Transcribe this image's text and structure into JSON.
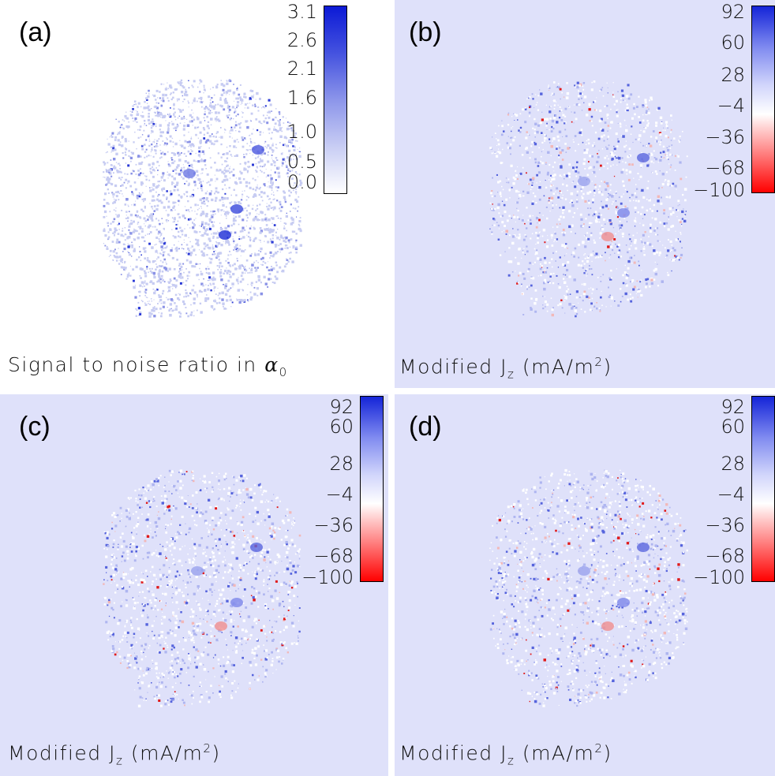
{
  "panels": {
    "a": {
      "label": "(a)",
      "caption_pre": "Signal to noise ratio in ",
      "caption_sym": "α",
      "caption_sub": "0",
      "ticks": [
        "3.1",
        "2.6",
        "2.1",
        "1.6",
        "1.0",
        "0.5",
        "0.0"
      ]
    },
    "b": {
      "label": "(b)",
      "caption_pre": "Modified J",
      "caption_sub": "z",
      "caption_post": " (mA/m",
      "caption_sup": "2",
      "caption_end": ")",
      "ticks": [
        "92",
        "60",
        "28",
        "−4",
        "−36",
        "−68",
        "−100"
      ]
    },
    "c": {
      "label": "(c)",
      "caption_pre": "Modified J",
      "caption_sub": "z",
      "caption_post": " (mA/m",
      "caption_sup": "2",
      "caption_end": ")",
      "ticks": [
        "92",
        "60",
        "28",
        "−4",
        "−36",
        "−68",
        "−100"
      ]
    },
    "d": {
      "label": "(d)",
      "caption_pre": "Modified J",
      "caption_sub": "z",
      "caption_post": " (mA/m",
      "caption_sup": "2",
      "caption_end": ")",
      "ticks": [
        "92",
        "60",
        "28",
        "−4",
        "−36",
        "−68",
        "−100"
      ]
    }
  },
  "chart_data": [
    {
      "type": "heatmap",
      "panel": "(a)",
      "title": "",
      "colorbar_ticks": [
        3.1,
        2.6,
        2.1,
        1.6,
        1.0,
        0.5,
        0.0
      ],
      "colorbar_range": [
        0.0,
        3.1
      ],
      "xlabel": "Signal to noise ratio in α0",
      "colormap": "white-blue",
      "background": "#ffffff"
    },
    {
      "type": "heatmap",
      "panel": "(b)",
      "title": "",
      "colorbar_ticks": [
        92,
        60,
        28,
        -4,
        -36,
        -68,
        -100
      ],
      "colorbar_range": [
        -100,
        92
      ],
      "xlabel": "Modified Jz (mA/m2)",
      "colormap": "red-white-blue",
      "background": "#dfe1fa"
    },
    {
      "type": "heatmap",
      "panel": "(c)",
      "title": "",
      "colorbar_ticks": [
        92,
        60,
        28,
        -4,
        -36,
        -68,
        -100
      ],
      "colorbar_range": [
        -100,
        92
      ],
      "xlabel": "Modified Jz (mA/m2)",
      "colormap": "red-white-blue",
      "background": "#dfe1fa"
    },
    {
      "type": "heatmap",
      "panel": "(d)",
      "title": "",
      "colorbar_ticks": [
        92,
        60,
        28,
        -4,
        -36,
        -68,
        -100
      ],
      "colorbar_range": [
        -100,
        92
      ],
      "xlabel": "Modified Jz (mA/m2)",
      "colormap": "red-white-blue",
      "background": "#dfe1fa"
    }
  ],
  "colors": {
    "panel_bg": "#dfe1fa",
    "snr_bg": "#ffffff",
    "blue": "#1424d8",
    "red": "#ff0000"
  }
}
